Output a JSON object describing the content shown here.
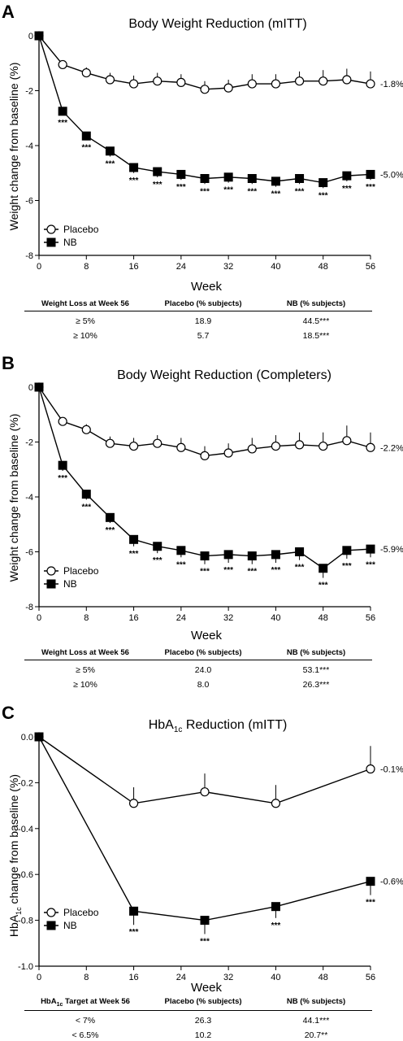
{
  "chart_data": [
    {
      "panel": "A",
      "type": "line",
      "title": "Body Weight Reduction (mITT)",
      "xlabel": "Week",
      "ylabel": "Weight change from baseline (%)",
      "xlim": [
        0,
        56
      ],
      "ylim": [
        -8,
        0
      ],
      "xticks": [
        0,
        8,
        16,
        24,
        32,
        40,
        48,
        56
      ],
      "yticks": [
        0,
        -2,
        -4,
        -6,
        -8
      ],
      "legend_position": "bottom-left",
      "series": [
        {
          "name": "Placebo",
          "marker": "open-circle",
          "x": [
            0,
            4,
            8,
            12,
            16,
            20,
            24,
            28,
            32,
            36,
            40,
            44,
            48,
            52,
            56
          ],
          "y": [
            0,
            -1.05,
            -1.35,
            -1.6,
            -1.75,
            -1.65,
            -1.7,
            -1.95,
            -1.9,
            -1.75,
            -1.75,
            -1.65,
            -1.65,
            -1.6,
            -1.75
          ],
          "err": [
            0.1,
            0.15,
            0.2,
            0.25,
            0.3,
            0.3,
            0.3,
            0.3,
            0.3,
            0.35,
            0.35,
            0.35,
            0.4,
            0.4,
            0.45
          ],
          "end_label": "-1.8%"
        },
        {
          "name": "NB",
          "marker": "filled-square",
          "x": [
            0,
            4,
            8,
            12,
            16,
            20,
            24,
            28,
            32,
            36,
            40,
            44,
            48,
            52,
            56
          ],
          "y": [
            0,
            -2.75,
            -3.65,
            -4.2,
            -4.8,
            -4.95,
            -5.05,
            -5.2,
            -5.15,
            -5.2,
            -5.3,
            -5.2,
            -5.35,
            -5.1,
            -5.05
          ],
          "err": [
            0.1,
            0.15,
            0.15,
            0.2,
            0.2,
            0.2,
            0.2,
            0.2,
            0.2,
            0.2,
            0.2,
            0.2,
            0.2,
            0.2,
            0.2
          ],
          "end_label": "-5.0%"
        }
      ],
      "significance": "***",
      "significance_x": [
        4,
        8,
        12,
        16,
        20,
        24,
        28,
        32,
        36,
        40,
        44,
        48,
        52,
        56
      ],
      "table": {
        "headers": [
          "Weight Loss at Week 56",
          "Placebo (% subjects)",
          "NB (% subjects)"
        ],
        "rows": [
          [
            "≥ 5%",
            "18.9",
            "44.5***"
          ],
          [
            "≥ 10%",
            "5.7",
            "18.5***"
          ]
        ]
      }
    },
    {
      "panel": "B",
      "type": "line",
      "title": "Body Weight Reduction (Completers)",
      "xlabel": "Week",
      "ylabel": "Weight change from baseline (%)",
      "xlim": [
        0,
        56
      ],
      "ylim": [
        -8,
        0
      ],
      "xticks": [
        0,
        8,
        16,
        24,
        32,
        40,
        48,
        56
      ],
      "yticks": [
        0,
        -2,
        -4,
        -6,
        -8
      ],
      "legend_position": "bottom-left",
      "series": [
        {
          "name": "Placebo",
          "marker": "open-circle",
          "x": [
            0,
            4,
            8,
            12,
            16,
            20,
            24,
            28,
            32,
            36,
            40,
            44,
            48,
            52,
            56
          ],
          "y": [
            0,
            -1.25,
            -1.55,
            -2.05,
            -2.15,
            -2.05,
            -2.2,
            -2.5,
            -2.4,
            -2.25,
            -2.15,
            -2.1,
            -2.15,
            -1.95,
            -2.2
          ],
          "err": [
            0.1,
            0.15,
            0.2,
            0.25,
            0.3,
            0.3,
            0.35,
            0.35,
            0.35,
            0.4,
            0.4,
            0.45,
            0.5,
            0.55,
            0.55
          ],
          "end_label": "-2.2%"
        },
        {
          "name": "NB",
          "marker": "filled-square",
          "x": [
            0,
            4,
            8,
            12,
            16,
            20,
            24,
            28,
            32,
            36,
            40,
            44,
            48,
            52,
            56
          ],
          "y": [
            0,
            -2.85,
            -3.9,
            -4.75,
            -5.55,
            -5.8,
            -5.95,
            -6.15,
            -6.1,
            -6.15,
            -6.1,
            -6.0,
            -6.6,
            -5.95,
            -5.9
          ],
          "err": [
            0.1,
            0.2,
            0.2,
            0.2,
            0.25,
            0.25,
            0.25,
            0.3,
            0.3,
            0.3,
            0.3,
            0.3,
            0.35,
            0.3,
            0.3
          ],
          "end_label": "-5.9%"
        }
      ],
      "significance": "***",
      "significance_x": [
        4,
        8,
        12,
        16,
        20,
        24,
        28,
        32,
        36,
        40,
        44,
        48,
        52,
        56
      ],
      "table": {
        "headers": [
          "Weight Loss at Week 56",
          "Placebo (% subjects)",
          "NB (% subjects)"
        ],
        "rows": [
          [
            "≥ 5%",
            "24.0",
            "53.1***"
          ],
          [
            "≥ 10%",
            "8.0",
            "26.3***"
          ]
        ]
      }
    },
    {
      "panel": "C",
      "type": "line",
      "title": "HbA1c Reduction (mITT)",
      "xlabel": "Week",
      "ylabel": "HbA1c change from baseline (%)",
      "xlim": [
        0,
        56
      ],
      "ylim": [
        -1.0,
        0.0
      ],
      "xticks": [
        0,
        8,
        16,
        24,
        32,
        40,
        48,
        56
      ],
      "yticks": [
        0.0,
        -0.2,
        -0.4,
        -0.6,
        -0.8,
        -1.0
      ],
      "legend_position": "bottom-left",
      "series": [
        {
          "name": "Placebo",
          "marker": "open-circle",
          "x": [
            0,
            16,
            28,
            40,
            56
          ],
          "y": [
            0,
            -0.29,
            -0.24,
            -0.29,
            -0.14
          ],
          "err": [
            0.01,
            0.07,
            0.08,
            0.08,
            0.1
          ],
          "end_label": "-0.1%"
        },
        {
          "name": "NB",
          "marker": "filled-square",
          "x": [
            0,
            16,
            28,
            40,
            56
          ],
          "y": [
            0,
            -0.76,
            -0.8,
            -0.74,
            -0.63
          ],
          "err": [
            0.01,
            0.06,
            0.06,
            0.05,
            0.06
          ],
          "end_label": "-0.6%"
        }
      ],
      "significance": "***",
      "significance_x": [
        16,
        28,
        40,
        56
      ],
      "table": {
        "headers": [
          "HbA1c Target at Week 56",
          "Placebo (% subjects)",
          "NB (% subjects)"
        ],
        "rows": [
          [
            "< 7%",
            "26.3",
            "44.1***"
          ],
          [
            "< 6.5%",
            "10.2",
            "20.7**"
          ]
        ]
      }
    }
  ]
}
